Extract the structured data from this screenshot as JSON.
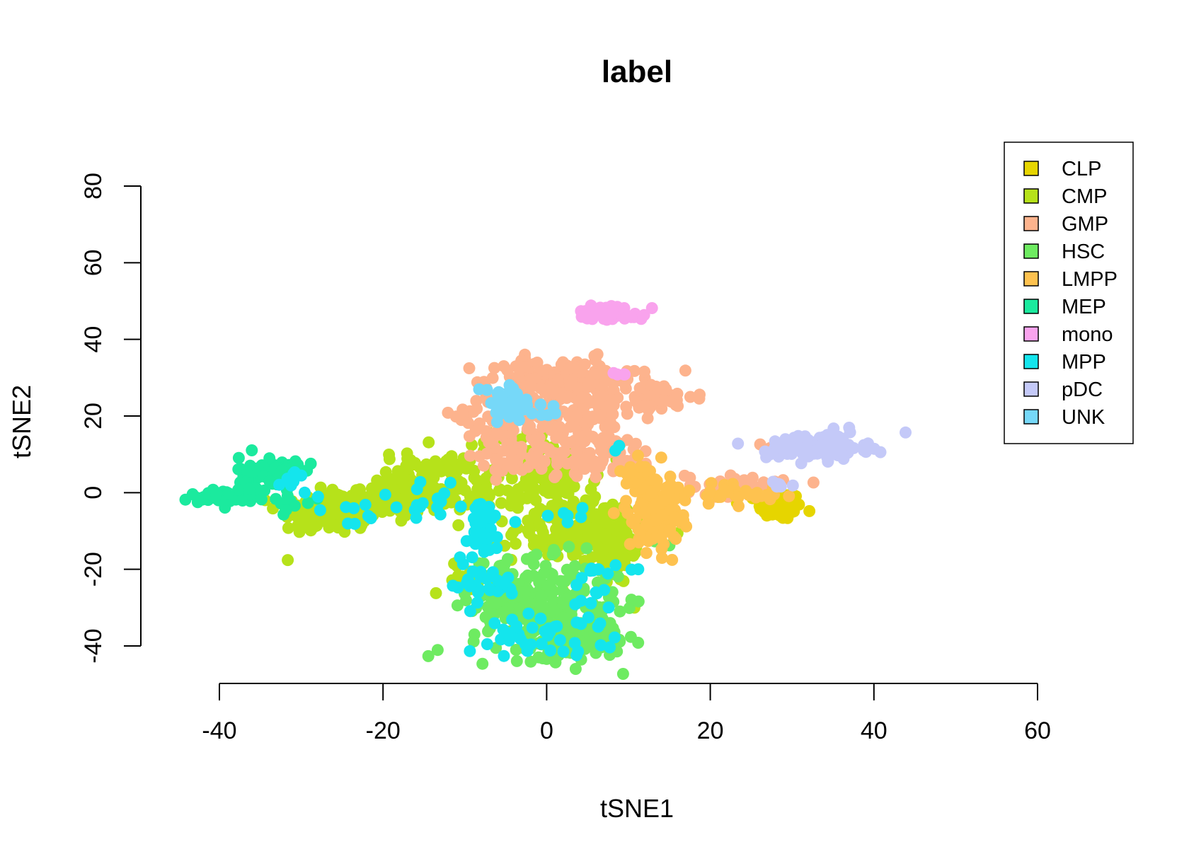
{
  "chart_data": {
    "type": "scatter",
    "title": "label",
    "xlabel": "tSNE1",
    "ylabel": "tSNE2",
    "xlim": [
      -40,
      60
    ],
    "ylim": [
      -40,
      80
    ],
    "xticks": [
      -40,
      -20,
      0,
      20,
      40,
      60
    ],
    "yticks": [
      -40,
      -20,
      0,
      20,
      40,
      60,
      80
    ],
    "grid": false,
    "legend_position": "top-right",
    "series": [
      {
        "name": "CLP",
        "color": "#E6D500",
        "clusters": [
          {
            "cx": 28.5,
            "cy": -3.5,
            "sx": 1.3,
            "sy": 1.8,
            "n": 110
          }
        ]
      },
      {
        "name": "CMP",
        "color": "#B6E21A",
        "clusters": [
          {
            "cx": -27,
            "cy": -5,
            "sx": 3.0,
            "sy": 3.0,
            "n": 90
          },
          {
            "cx": -20,
            "cy": -2,
            "sx": 3.5,
            "sy": 2.8,
            "n": 110
          },
          {
            "cx": -14,
            "cy": 3,
            "sx": 3.5,
            "sy": 4.0,
            "n": 100
          },
          {
            "cx": -6,
            "cy": 5,
            "sx": 2.5,
            "sy": 5.0,
            "n": 60
          },
          {
            "cx": 1,
            "cy": 2,
            "sx": 2.5,
            "sy": 5.0,
            "n": 90
          },
          {
            "cx": 4,
            "cy": -10,
            "sx": 4.0,
            "sy": 4.0,
            "n": 120
          },
          {
            "cx": 8,
            "cy": -15,
            "sx": 2.0,
            "sy": 5.0,
            "n": 50
          },
          {
            "cx": -10,
            "cy": -22,
            "sx": 2.0,
            "sy": 2.0,
            "n": 15
          },
          {
            "cx": -4,
            "cy": -36,
            "sx": 1.0,
            "sy": 1.0,
            "n": 4
          }
        ]
      },
      {
        "name": "GMP",
        "color": "#FDB38D",
        "clusters": [
          {
            "cx": 2,
            "cy": 30,
            "sx": 4.5,
            "sy": 2.5,
            "n": 140
          },
          {
            "cx": 12,
            "cy": 25,
            "sx": 3.0,
            "sy": 2.0,
            "n": 70
          },
          {
            "cx": 2,
            "cy": 20,
            "sx": 4.5,
            "sy": 3.5,
            "n": 110
          },
          {
            "cx": 4,
            "cy": 10,
            "sx": 5.0,
            "sy": 2.8,
            "n": 110
          },
          {
            "cx": -6,
            "cy": 15,
            "sx": 2.0,
            "sy": 4.0,
            "n": 35
          },
          {
            "cx": -9,
            "cy": 21,
            "sx": 1.5,
            "sy": 1.0,
            "n": 8
          },
          {
            "cx": 23,
            "cy": 2,
            "sx": 3.0,
            "sy": 1.5,
            "n": 40
          },
          {
            "cx": 27.5,
            "cy": 12,
            "sx": 0.6,
            "sy": 0.6,
            "n": 4
          }
        ]
      },
      {
        "name": "HSC",
        "color": "#6EEB61",
        "clusters": [
          {
            "cx": 0,
            "cy": -30,
            "sx": 4.5,
            "sy": 6.0,
            "n": 260
          },
          {
            "cx": 4,
            "cy": -39,
            "sx": 2.5,
            "sy": 2.0,
            "n": 100
          },
          {
            "cx": -5,
            "cy": -24,
            "sx": 2.0,
            "sy": 4.0,
            "n": 40
          },
          {
            "cx": 14,
            "cy": -14,
            "sx": 0.8,
            "sy": 0.8,
            "n": 3
          }
        ]
      },
      {
        "name": "LMPP",
        "color": "#FEC24F",
        "clusters": [
          {
            "cx": 13,
            "cy": -4,
            "sx": 1.6,
            "sy": 5.5,
            "n": 110
          },
          {
            "cx": 15,
            "cy": -3,
            "sx": 1.2,
            "sy": 2.5,
            "n": 30
          },
          {
            "cx": 23,
            "cy": 0,
            "sx": 3.0,
            "sy": 1.5,
            "n": 30
          },
          {
            "cx": 11,
            "cy": 4,
            "sx": 1.0,
            "sy": 2.5,
            "n": 20
          }
        ]
      },
      {
        "name": "MEP",
        "color": "#1BEA9E",
        "clusters": [
          {
            "cx": -34,
            "cy": 5,
            "sx": 1.8,
            "sy": 2.2,
            "n": 90
          },
          {
            "cx": -39.5,
            "cy": -1,
            "sx": 2.0,
            "sy": 1.0,
            "n": 45
          },
          {
            "cx": -31,
            "cy": -2,
            "sx": 1.5,
            "sy": 1.5,
            "n": 10
          }
        ]
      },
      {
        "name": "mono",
        "color": "#F9A3ED",
        "clusters": [
          {
            "cx": 8,
            "cy": 47,
            "sx": 2.0,
            "sy": 1.0,
            "n": 55
          },
          {
            "cx": 8,
            "cy": 31,
            "sx": 1.3,
            "sy": 0.4,
            "n": 4
          }
        ]
      },
      {
        "name": "MPP",
        "color": "#14E5ED",
        "clusters": [
          {
            "cx": -8,
            "cy": -10,
            "sx": 1.5,
            "sy": 4.0,
            "n": 40
          },
          {
            "cx": -8,
            "cy": -24,
            "sx": 2.5,
            "sy": 3.0,
            "n": 30
          },
          {
            "cx": 0,
            "cy": -37,
            "sx": 3.5,
            "sy": 2.5,
            "n": 35
          },
          {
            "cx": 6,
            "cy": -30,
            "sx": 1.5,
            "sy": 4.0,
            "n": 15
          },
          {
            "cx": -14,
            "cy": -2,
            "sx": 3.5,
            "sy": 3.0,
            "n": 18
          },
          {
            "cx": -31,
            "cy": 4,
            "sx": 1.5,
            "sy": 2.0,
            "n": 10
          },
          {
            "cx": -25,
            "cy": -5,
            "sx": 3.0,
            "sy": 2.5,
            "n": 8
          },
          {
            "cx": 8,
            "cy": -20,
            "sx": 1.5,
            "sy": 0.8,
            "n": 8
          },
          {
            "cx": 2,
            "cy": -7,
            "sx": 1.5,
            "sy": 2.5,
            "n": 6
          },
          {
            "cx": 9,
            "cy": 12,
            "sx": 0.5,
            "sy": 0.5,
            "n": 2
          }
        ]
      },
      {
        "name": "pDC",
        "color": "#C4C9F8",
        "clusters": [
          {
            "cx": 33,
            "cy": 12,
            "sx": 3.0,
            "sy": 1.7,
            "n": 120
          },
          {
            "cx": 28.5,
            "cy": 2,
            "sx": 0.7,
            "sy": 1.2,
            "n": 6
          }
        ]
      },
      {
        "name": "UNK",
        "color": "#76D8F8",
        "clusters": [
          {
            "cx": -5,
            "cy": 23,
            "sx": 1.5,
            "sy": 2.5,
            "n": 55
          },
          {
            "cx": -2,
            "cy": 22,
            "sx": 1.2,
            "sy": 1.0,
            "n": 15
          }
        ]
      }
    ]
  }
}
